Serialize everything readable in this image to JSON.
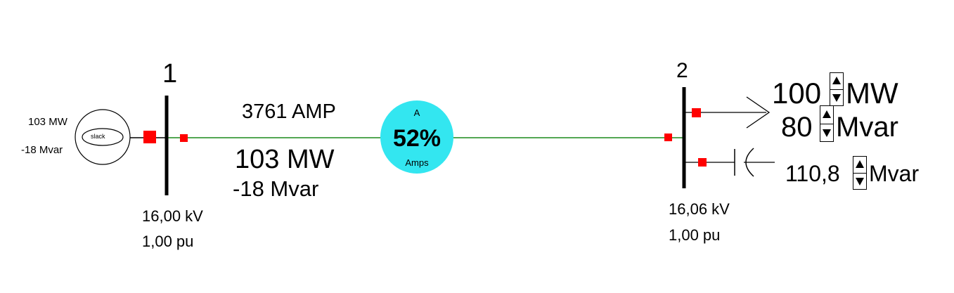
{
  "colors": {
    "breaker": "#ff0000",
    "line": "#1a8a1a",
    "gauge": "#33e6f0"
  },
  "bus1": {
    "label": "1",
    "voltage_kv": "16,00 kV",
    "voltage_pu": "1,00 pu"
  },
  "bus2": {
    "label": "2",
    "voltage_kv": "16,06 kV",
    "voltage_pu": "1,00 pu"
  },
  "generator": {
    "symbol_text": "slack",
    "mw": "103 MW",
    "mvar": "-18 Mvar"
  },
  "branch": {
    "amps": "3761 AMP",
    "mw": "103 MW",
    "mvar": "-18 Mvar",
    "gauge": {
      "top_label": "A",
      "percent_text": "52%",
      "bottom_label": "Amps",
      "loading_percent": 52
    }
  },
  "load": {
    "mw_value": "100",
    "mw_unit": "MW",
    "mvar_value": "80",
    "mvar_unit": "Mvar"
  },
  "capacitor": {
    "mvar_value": "110,8",
    "mvar_unit": "Mvar"
  }
}
